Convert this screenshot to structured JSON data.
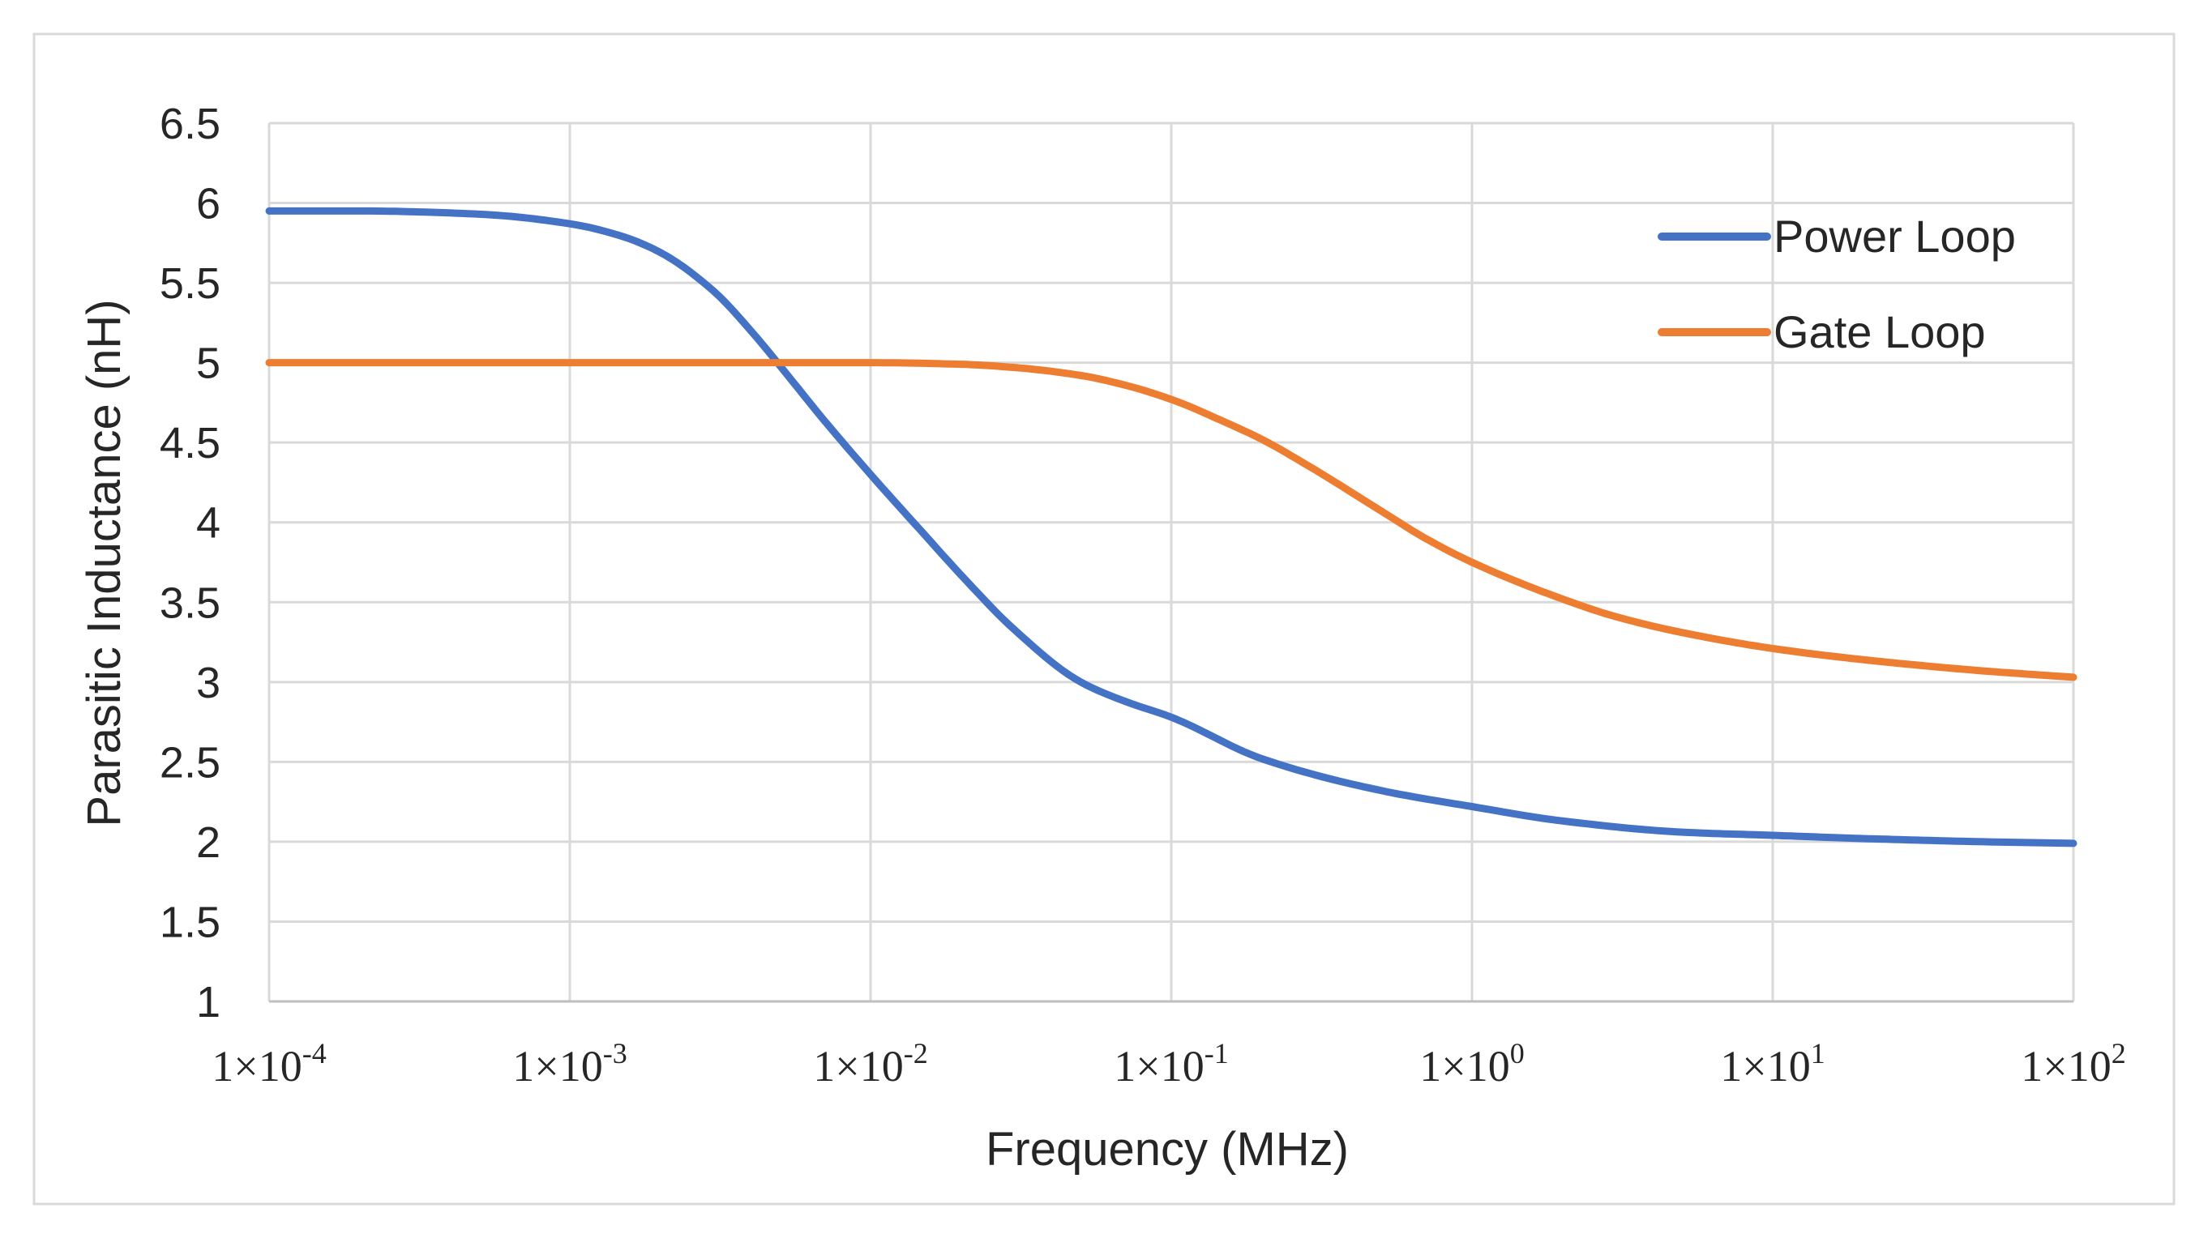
{
  "chart_data": {
    "type": "line",
    "title": "",
    "xlabel": "Frequency (MHz)",
    "ylabel": "Parasitic Inductance (nH)",
    "xscale": "log",
    "xlim": [
      0.0001,
      100
    ],
    "ylim": [
      1,
      6.5
    ],
    "grid": true,
    "legend_position": "top-right",
    "yticks": [
      "1",
      "1.5",
      "2",
      "2.5",
      "3",
      "3.5",
      "4",
      "4.5",
      "5",
      "5.5",
      "6",
      "6.5"
    ],
    "xticks": [
      {
        "mantissa": "1×10",
        "exp": "-4",
        "value": 0.0001
      },
      {
        "mantissa": "1×10",
        "exp": "-3",
        "value": 0.001
      },
      {
        "mantissa": "1×10",
        "exp": "-2",
        "value": 0.01
      },
      {
        "mantissa": "1×10",
        "exp": "-1",
        "value": 0.1
      },
      {
        "mantissa": "1×10",
        "exp": "0",
        "value": 1
      },
      {
        "mantissa": "1×10",
        "exp": "1",
        "value": 10
      },
      {
        "mantissa": "1×10",
        "exp": "2",
        "value": 100
      }
    ],
    "series": [
      {
        "name": "Power Loop",
        "color": "#4472c4",
        "x": [
          0.0001,
          0.0002,
          0.0005,
          0.001,
          0.0015,
          0.002,
          0.003,
          0.004,
          0.005,
          0.007,
          0.01,
          0.015,
          0.02,
          0.03,
          0.05,
          0.07,
          0.1,
          0.2,
          0.5,
          1,
          2,
          5,
          10,
          20,
          50,
          100
        ],
        "y": [
          5.95,
          5.95,
          5.93,
          5.87,
          5.79,
          5.69,
          5.45,
          5.2,
          4.98,
          4.64,
          4.3,
          3.93,
          3.67,
          3.33,
          3.0,
          2.88,
          2.78,
          2.52,
          2.32,
          2.22,
          2.13,
          2.06,
          2.04,
          2.02,
          2.0,
          1.99
        ]
      },
      {
        "name": "Gate Loop",
        "color": "#ed7d31",
        "x": [
          0.0001,
          0.001,
          0.005,
          0.01,
          0.02,
          0.03,
          0.05,
          0.07,
          0.1,
          0.15,
          0.2,
          0.3,
          0.5,
          0.7,
          1,
          2,
          3,
          5,
          10,
          20,
          50,
          100
        ],
        "y": [
          5.0,
          5.0,
          5.0,
          5.0,
          4.99,
          4.97,
          4.92,
          4.86,
          4.77,
          4.63,
          4.52,
          4.33,
          4.07,
          3.9,
          3.75,
          3.52,
          3.41,
          3.31,
          3.21,
          3.14,
          3.07,
          3.03
        ]
      }
    ]
  }
}
